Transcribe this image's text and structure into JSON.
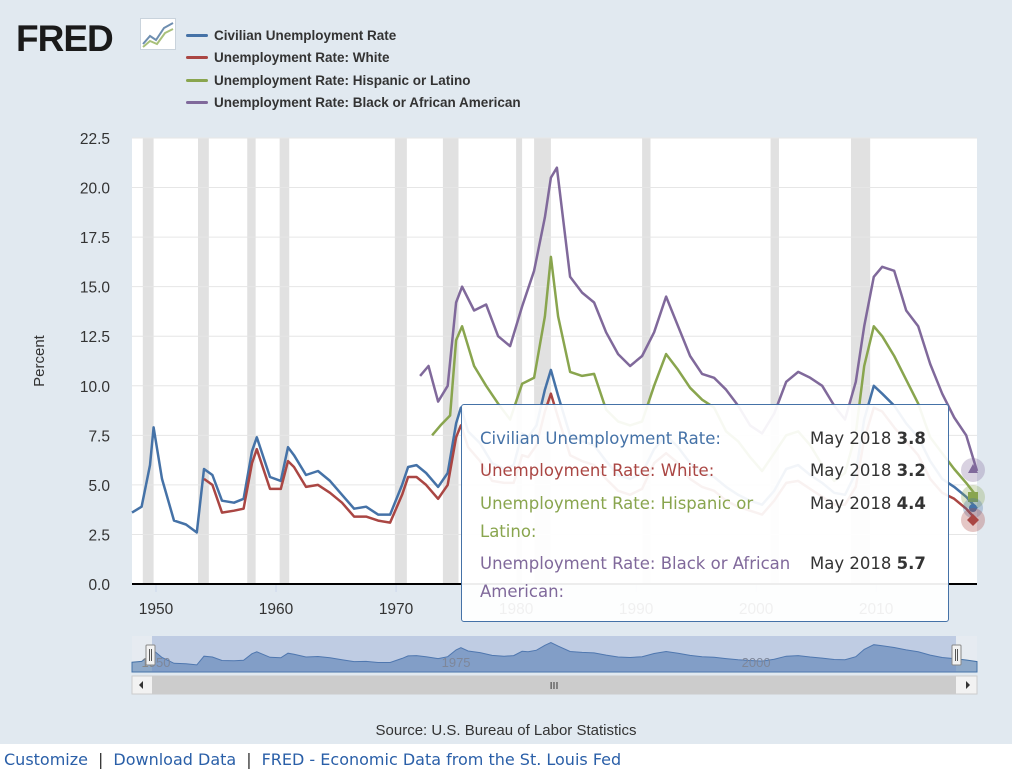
{
  "logo": {
    "text": "FRED",
    "icon": "line-chart-icon"
  },
  "legend": [
    {
      "name": "Civilian Unemployment Rate",
      "color": "#4572a7"
    },
    {
      "name": "Unemployment Rate: White",
      "color": "#aa4643"
    },
    {
      "name": "Unemployment Rate: Hispanic or Latino",
      "color": "#89a54e"
    },
    {
      "name": "Unemployment Rate: Black or African American",
      "color": "#80699b"
    }
  ],
  "chart_data": {
    "type": "line",
    "ylabel": "Percent",
    "ylim": [
      0,
      22.5
    ],
    "yticks": [
      "0.0",
      "2.5",
      "5.0",
      "7.5",
      "10.0",
      "12.5",
      "15.0",
      "17.5",
      "20.0",
      "22.5"
    ],
    "xlim": [
      1948,
      2018.4
    ],
    "xticks": [
      "1950",
      "1960",
      "1970",
      "1980",
      "1990",
      "2000",
      "2010"
    ],
    "recessions": [
      [
        1948.9,
        1949.8
      ],
      [
        1953.5,
        1954.4
      ],
      [
        1957.6,
        1958.3
      ],
      [
        1960.3,
        1961.1
      ],
      [
        1969.9,
        1970.9
      ],
      [
        1973.9,
        1975.2
      ],
      [
        1980.0,
        1980.5
      ],
      [
        1981.5,
        1982.9
      ],
      [
        1990.5,
        1991.2
      ],
      [
        2001.2,
        2001.9
      ],
      [
        2007.9,
        2009.5
      ]
    ],
    "series": [
      {
        "name": "Civilian Unemployment Rate",
        "color": "#4572a7",
        "x": [
          1948.0,
          1948.8,
          1949.5,
          1949.8,
          1950.5,
          1951.5,
          1952.5,
          1953.4,
          1954.0,
          1954.7,
          1955.5,
          1956.5,
          1957.3,
          1958.0,
          1958.4,
          1959.5,
          1960.4,
          1961.0,
          1961.5,
          1962.5,
          1963.5,
          1964.5,
          1965.5,
          1966.5,
          1967.5,
          1968.5,
          1969.5,
          1970.5,
          1971.0,
          1971.7,
          1972.5,
          1973.5,
          1974.3,
          1975.0,
          1975.4,
          1976.0,
          1977.0,
          1978.0,
          1979.0,
          1979.8,
          1980.5,
          1981.0,
          1981.7,
          1982.4,
          1982.9,
          1983.5,
          1984.5,
          1985.5,
          1986.5,
          1987.5,
          1988.5,
          1989.5,
          1990.5,
          1991.5,
          1992.5,
          1993.5,
          1994.5,
          1995.5,
          1996.5,
          1997.5,
          1998.5,
          1999.5,
          2000.5,
          2001.5,
          2002.5,
          2003.5,
          2004.5,
          2005.5,
          2006.5,
          2007.4,
          2008.3,
          2009.0,
          2009.8,
          2010.5,
          2011.5,
          2012.5,
          2013.5,
          2014.5,
          2015.5,
          2016.5,
          2017.5,
          2018.4
        ],
        "y": [
          3.6,
          3.9,
          6.0,
          7.9,
          5.3,
          3.2,
          3.0,
          2.6,
          5.8,
          5.5,
          4.2,
          4.1,
          4.3,
          6.7,
          7.4,
          5.4,
          5.2,
          6.9,
          6.5,
          5.5,
          5.7,
          5.2,
          4.5,
          3.8,
          3.9,
          3.5,
          3.5,
          5.0,
          5.9,
          6.0,
          5.6,
          4.9,
          5.6,
          8.1,
          8.9,
          7.7,
          7.1,
          6.1,
          5.8,
          6.0,
          7.6,
          7.4,
          8.0,
          9.8,
          10.8,
          9.5,
          7.5,
          7.2,
          7.0,
          6.2,
          5.5,
          5.3,
          5.6,
          6.8,
          7.5,
          6.9,
          6.1,
          5.6,
          5.4,
          4.9,
          4.5,
          4.2,
          4.0,
          4.7,
          5.8,
          6.0,
          5.5,
          5.1,
          4.6,
          4.5,
          5.6,
          8.3,
          10.0,
          9.6,
          9.0,
          8.1,
          7.4,
          6.2,
          5.3,
          4.9,
          4.4,
          3.8
        ]
      },
      {
        "name": "Unemployment Rate: White",
        "color": "#aa4643",
        "x": [
          1954.0,
          1954.7,
          1955.5,
          1956.5,
          1957.3,
          1958.0,
          1958.4,
          1959.5,
          1960.4,
          1961.0,
          1961.5,
          1962.5,
          1963.5,
          1964.5,
          1965.5,
          1966.5,
          1967.5,
          1968.5,
          1969.5,
          1970.5,
          1971.0,
          1971.7,
          1972.5,
          1973.5,
          1974.3,
          1975.0,
          1975.4,
          1976.0,
          1977.0,
          1978.0,
          1979.0,
          1979.8,
          1980.5,
          1981.0,
          1981.7,
          1982.4,
          1982.9,
          1983.5,
          1984.5,
          1985.5,
          1986.5,
          1987.5,
          1988.5,
          1989.5,
          1990.5,
          1991.5,
          1992.5,
          1993.5,
          1994.5,
          1995.5,
          1996.5,
          1997.5,
          1998.5,
          1999.5,
          2000.5,
          2001.5,
          2002.5,
          2003.5,
          2004.5,
          2005.5,
          2006.5,
          2007.4,
          2008.3,
          2009.0,
          2009.8,
          2010.5,
          2011.5,
          2012.5,
          2013.5,
          2014.5,
          2015.5,
          2016.5,
          2017.5,
          2018.4
        ],
        "y": [
          5.3,
          5.0,
          3.6,
          3.7,
          3.8,
          6.1,
          6.8,
          4.8,
          4.8,
          6.2,
          5.9,
          4.9,
          5.0,
          4.6,
          4.1,
          3.4,
          3.4,
          3.2,
          3.1,
          4.5,
          5.4,
          5.4,
          5.0,
          4.3,
          5.0,
          7.4,
          8.0,
          6.9,
          6.2,
          5.2,
          5.1,
          5.1,
          6.5,
          6.4,
          7.0,
          8.7,
          9.6,
          8.4,
          6.5,
          6.2,
          6.0,
          5.3,
          4.7,
          4.5,
          4.8,
          6.1,
          6.6,
          6.1,
          5.3,
          4.9,
          4.7,
          4.2,
          3.9,
          3.7,
          3.5,
          4.2,
          5.1,
          5.2,
          4.8,
          4.4,
          4.0,
          4.0,
          4.9,
          7.3,
          8.9,
          8.7,
          7.9,
          7.2,
          6.5,
          5.3,
          4.6,
          4.3,
          3.8,
          3.2
        ]
      },
      {
        "name": "Unemployment Rate: Hispanic or Latino",
        "color": "#89a54e",
        "x": [
          1973.0,
          1973.7,
          1974.5,
          1975.0,
          1975.5,
          1976.5,
          1977.5,
          1978.5,
          1979.5,
          1980.5,
          1981.5,
          1982.4,
          1982.9,
          1983.5,
          1984.5,
          1985.5,
          1986.5,
          1987.5,
          1988.5,
          1989.5,
          1990.5,
          1991.5,
          1992.5,
          1993.5,
          1994.5,
          1995.5,
          1996.5,
          1997.5,
          1998.5,
          1999.5,
          2000.5,
          2001.5,
          2002.5,
          2003.5,
          2004.5,
          2005.5,
          2006.5,
          2007.4,
          2008.3,
          2009.0,
          2009.8,
          2010.5,
          2011.5,
          2012.5,
          2013.5,
          2014.5,
          2015.5,
          2016.5,
          2017.5,
          2018.4
        ],
        "y": [
          7.5,
          8.0,
          8.5,
          12.3,
          13.0,
          11.0,
          10.0,
          9.1,
          8.3,
          10.1,
          10.4,
          13.5,
          16.5,
          13.5,
          10.7,
          10.5,
          10.6,
          8.8,
          8.2,
          8.0,
          8.2,
          10.0,
          11.6,
          10.8,
          9.9,
          9.3,
          8.9,
          7.7,
          7.2,
          6.4,
          5.7,
          6.6,
          7.5,
          7.7,
          7.0,
          6.0,
          5.2,
          5.6,
          7.6,
          11.0,
          13.0,
          12.5,
          11.5,
          10.3,
          9.1,
          7.4,
          6.6,
          5.8,
          5.1,
          4.4
        ]
      },
      {
        "name": "Unemployment Rate: Black or African American",
        "color": "#80699b",
        "x": [
          1972.0,
          1972.7,
          1973.5,
          1974.3,
          1975.0,
          1975.5,
          1976.5,
          1977.5,
          1978.5,
          1979.5,
          1980.5,
          1981.5,
          1982.4,
          1982.9,
          1983.4,
          1984.5,
          1985.5,
          1986.5,
          1987.5,
          1988.5,
          1989.5,
          1990.5,
          1991.5,
          1992.5,
          1993.5,
          1994.5,
          1995.5,
          1996.5,
          1997.5,
          1998.5,
          1999.5,
          2000.5,
          2001.5,
          2002.5,
          2003.5,
          2004.5,
          2005.5,
          2006.5,
          2007.4,
          2008.3,
          2009.0,
          2009.8,
          2010.5,
          2011.5,
          2012.5,
          2013.5,
          2014.5,
          2015.5,
          2016.5,
          2017.5,
          2018.4
        ],
        "y": [
          10.5,
          11.0,
          9.2,
          10.0,
          14.2,
          15.0,
          13.8,
          14.1,
          12.5,
          12.0,
          14.0,
          15.8,
          18.5,
          20.5,
          21.0,
          15.5,
          14.7,
          14.2,
          12.7,
          11.6,
          11.0,
          11.5,
          12.7,
          14.5,
          13.0,
          11.5,
          10.6,
          10.4,
          9.8,
          9.0,
          8.0,
          7.6,
          8.6,
          10.2,
          10.7,
          10.4,
          10.0,
          9.0,
          8.3,
          10.2,
          13.0,
          15.5,
          16.0,
          15.8,
          13.8,
          13.0,
          11.1,
          9.6,
          8.4,
          7.5,
          5.7
        ]
      }
    ]
  },
  "tooltip": {
    "rows": [
      {
        "name": "Civilian Unemployment Rate:",
        "date": "May 2018",
        "value": "3.8",
        "color": "#4572a7"
      },
      {
        "name": "Unemployment Rate: White:",
        "date": "May 2018",
        "value": "3.2",
        "color": "#aa4643"
      },
      {
        "name": "Unemployment Rate: Hispanic or Latino:",
        "date": "May 2018",
        "value": "4.4",
        "color": "#89a54e"
      },
      {
        "name": "Unemployment Rate: Black or African American:",
        "date": "May 2018",
        "value": "5.7",
        "color": "#80699b"
      }
    ]
  },
  "navigator": {
    "labels": [
      "1950",
      "1975",
      "2000"
    ],
    "grip": "III"
  },
  "source": "Source: U.S. Bureau of Labor Statistics",
  "footer": {
    "links": [
      "Customize",
      "Download Data",
      "FRED - Economic Data from the St. Louis Fed"
    ],
    "separator": "|"
  }
}
